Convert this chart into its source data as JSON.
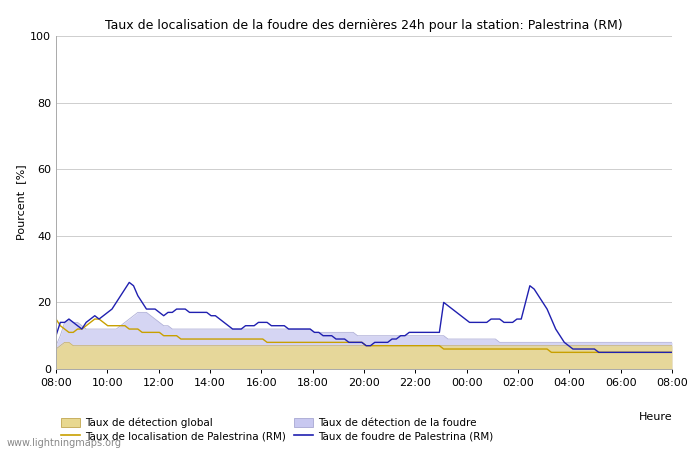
{
  "title": "Taux de localisation de la foudre des dernières 24h pour la station: Palestrina (RM)",
  "xlabel": "Heure",
  "ylabel": "Pourcent  [%]",
  "yticks": [
    0,
    20,
    40,
    60,
    80,
    100
  ],
  "ylim": [
    0,
    100
  ],
  "watermark": "www.lightningmaps.org",
  "legend": [
    {
      "label": "Taux de détection global",
      "type": "fill",
      "color": "#e8d89a",
      "edgecolor": "#c8b870"
    },
    {
      "label": "Taux de localisation de Palestrina (RM)",
      "type": "line",
      "color": "#c8a000"
    },
    {
      "label": "Taux de détection de la foudre",
      "type": "fill",
      "color": "#c0c0e8",
      "edgecolor": "#a0a0c8"
    },
    {
      "label": "Taux de foudre de Palestrina (RM)",
      "type": "line",
      "color": "#3030c0"
    }
  ],
  "xtick_labels": [
    "08:00",
    "10:00",
    "12:00",
    "14:00",
    "16:00",
    "18:00",
    "20:00",
    "22:00",
    "00:00",
    "02:00",
    "04:00",
    "06:00",
    "08:00"
  ],
  "global_detection": [
    6,
    7,
    8,
    8,
    7,
    7,
    7,
    7,
    7,
    7,
    7,
    7,
    7,
    7,
    7,
    7,
    7,
    7,
    7,
    7,
    7,
    7,
    7,
    7,
    7,
    7,
    7,
    7,
    7,
    7,
    7,
    7,
    7,
    7,
    7,
    7,
    7,
    7,
    7,
    7,
    7,
    7,
    7,
    7,
    7,
    7,
    7,
    7,
    7,
    7,
    7,
    7,
    7,
    7,
    7,
    7,
    7,
    7,
    7,
    7,
    7,
    7,
    7,
    7,
    7,
    7,
    7,
    7,
    7,
    7,
    7,
    7,
    7,
    7,
    7,
    7,
    7,
    7,
    7,
    7,
    7,
    7,
    7,
    7,
    7,
    7,
    7,
    7,
    7,
    7,
    7,
    7,
    7,
    7,
    7,
    7,
    7,
    7,
    7,
    7,
    7,
    7,
    7,
    7,
    7,
    7,
    7,
    7,
    7,
    7,
    7,
    7,
    7,
    7,
    7,
    7,
    7,
    7,
    7,
    7,
    7,
    7,
    7,
    7,
    7,
    7,
    7,
    7,
    7,
    7,
    7,
    7,
    7,
    7,
    7,
    7,
    7,
    7,
    7,
    7,
    7,
    7,
    7,
    7
  ],
  "lightning_detection": [
    7,
    10,
    14,
    15,
    14,
    14,
    13,
    12,
    12,
    12,
    12,
    12,
    12,
    12,
    12,
    13,
    14,
    15,
    16,
    17,
    17,
    17,
    16,
    15,
    14,
    13,
    13,
    12,
    12,
    12,
    12,
    12,
    12,
    12,
    12,
    12,
    12,
    12,
    12,
    12,
    12,
    12,
    12,
    12,
    12,
    12,
    12,
    12,
    12,
    12,
    12,
    12,
    12,
    12,
    12,
    12,
    12,
    12,
    12,
    12,
    11,
    11,
    11,
    11,
    11,
    11,
    11,
    11,
    11,
    11,
    10,
    10,
    10,
    10,
    10,
    10,
    10,
    10,
    10,
    10,
    10,
    10,
    10,
    10,
    10,
    10,
    10,
    10,
    10,
    10,
    10,
    9,
    9,
    9,
    9,
    9,
    9,
    9,
    9,
    9,
    9,
    9,
    9,
    8,
    8,
    8,
    8,
    8,
    8,
    8,
    8,
    8,
    8,
    8,
    8,
    8,
    8,
    8,
    8,
    8,
    8,
    8,
    8,
    8,
    8,
    8,
    8,
    8,
    8,
    8,
    8,
    8,
    8,
    8,
    8,
    8,
    8,
    8,
    8,
    8,
    8,
    8,
    8,
    8
  ],
  "localization_palestrina": [
    15,
    13,
    12,
    11,
    11,
    12,
    12,
    13,
    14,
    15,
    15,
    14,
    13,
    13,
    13,
    13,
    13,
    12,
    12,
    12,
    11,
    11,
    11,
    11,
    11,
    10,
    10,
    10,
    10,
    9,
    9,
    9,
    9,
    9,
    9,
    9,
    9,
    9,
    9,
    9,
    9,
    9,
    9,
    9,
    9,
    9,
    9,
    9,
    9,
    8,
    8,
    8,
    8,
    8,
    8,
    8,
    8,
    8,
    8,
    8,
    8,
    8,
    8,
    8,
    8,
    8,
    8,
    8,
    8,
    8,
    8,
    8,
    7,
    7,
    7,
    7,
    7,
    7,
    7,
    7,
    7,
    7,
    7,
    7,
    7,
    7,
    7,
    7,
    7,
    7,
    6,
    6,
    6,
    6,
    6,
    6,
    6,
    6,
    6,
    6,
    6,
    6,
    6,
    6,
    6,
    6,
    6,
    6,
    6,
    6,
    6,
    6,
    6,
    6,
    6,
    5,
    5,
    5,
    5,
    5,
    5,
    5,
    5,
    5,
    5,
    5,
    5,
    5,
    5,
    5,
    5,
    5,
    5,
    5,
    5,
    5,
    5,
    5,
    5,
    5,
    5,
    5,
    5,
    5
  ],
  "foudre_palestrina": [
    10,
    14,
    14,
    15,
    14,
    13,
    12,
    14,
    15,
    16,
    15,
    16,
    17,
    18,
    20,
    22,
    24,
    26,
    25,
    22,
    20,
    18,
    18,
    18,
    17,
    16,
    17,
    17,
    18,
    18,
    18,
    17,
    17,
    17,
    17,
    17,
    16,
    16,
    15,
    14,
    13,
    12,
    12,
    12,
    13,
    13,
    13,
    14,
    14,
    14,
    13,
    13,
    13,
    13,
    12,
    12,
    12,
    12,
    12,
    12,
    11,
    11,
    10,
    10,
    10,
    9,
    9,
    9,
    8,
    8,
    8,
    8,
    7,
    7,
    8,
    8,
    8,
    8,
    9,
    9,
    10,
    10,
    11,
    11,
    11,
    11,
    11,
    11,
    11,
    11,
    20,
    19,
    18,
    17,
    16,
    15,
    14,
    14,
    14,
    14,
    14,
    15,
    15,
    15,
    14,
    14,
    14,
    15,
    15,
    20,
    25,
    24,
    22,
    20,
    18,
    15,
    12,
    10,
    8,
    7,
    6,
    6,
    6,
    6,
    6,
    6,
    5,
    5,
    5,
    5,
    5,
    5,
    5,
    5,
    5,
    5,
    5,
    5,
    5,
    5,
    5,
    5,
    5,
    5
  ]
}
